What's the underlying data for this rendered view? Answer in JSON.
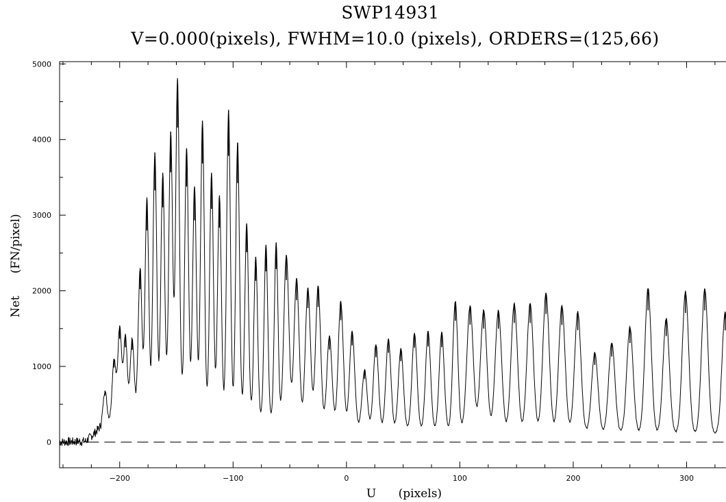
{
  "chart_data": {
    "type": "line",
    "title": "SWP14931",
    "subtitle": "V=0.000(pixels), FWHM=10.0 (pixels), ORDERS=(125,66)",
    "xlabel": "U      (pixels)",
    "ylabel": "Net      (FN/pixel)",
    "xlim": [
      -253,
      345
    ],
    "ylim": [
      -340,
      5030
    ],
    "x_ticks": [
      -200,
      -100,
      0,
      100,
      200,
      300
    ],
    "y_ticks": [
      0,
      1000,
      2000,
      3000,
      4000,
      5000
    ],
    "grid": false,
    "legend": "none",
    "zero_line": {
      "y": 0,
      "style": "dashed"
    },
    "series": [
      {
        "peaks": [
          {
            "x": -213,
            "y": 680
          },
          {
            "x": -205,
            "y": 1100
          },
          {
            "x": -200,
            "y": 1540
          },
          {
            "x": -195,
            "y": 1400
          },
          {
            "x": -189,
            "y": 1360
          },
          {
            "x": -182,
            "y": 2300
          },
          {
            "x": -176,
            "y": 3210
          },
          {
            "x": -169,
            "y": 3830
          },
          {
            "x": -162,
            "y": 3560
          },
          {
            "x": -155,
            "y": 4100
          },
          {
            "x": -149,
            "y": 4790
          },
          {
            "x": -141,
            "y": 3880
          },
          {
            "x": -134,
            "y": 3360
          },
          {
            "x": -127,
            "y": 4250
          },
          {
            "x": -119,
            "y": 3550
          },
          {
            "x": -112,
            "y": 3260
          },
          {
            "x": -104,
            "y": 4380
          },
          {
            "x": -96,
            "y": 3960
          },
          {
            "x": -88,
            "y": 2890
          },
          {
            "x": -80,
            "y": 2450
          },
          {
            "x": -71,
            "y": 2600
          },
          {
            "x": -62,
            "y": 2640
          },
          {
            "x": -53,
            "y": 2470
          },
          {
            "x": -44,
            "y": 2160
          },
          {
            "x": -34,
            "y": 2040
          },
          {
            "x": -25,
            "y": 2060
          },
          {
            "x": -15,
            "y": 1400
          },
          {
            "x": -5,
            "y": 1860
          },
          {
            "x": 5,
            "y": 1470
          },
          {
            "x": 16,
            "y": 950
          },
          {
            "x": 26,
            "y": 1290
          },
          {
            "x": 37,
            "y": 1360
          },
          {
            "x": 48,
            "y": 1230
          },
          {
            "x": 60,
            "y": 1440
          },
          {
            "x": 72,
            "y": 1460
          },
          {
            "x": 84,
            "y": 1450
          },
          {
            "x": 96,
            "y": 1860
          },
          {
            "x": 109,
            "y": 1800
          },
          {
            "x": 121,
            "y": 1740
          },
          {
            "x": 134,
            "y": 1740
          },
          {
            "x": 148,
            "y": 1830
          },
          {
            "x": 162,
            "y": 1830
          },
          {
            "x": 176,
            "y": 1970
          },
          {
            "x": 190,
            "y": 1800
          },
          {
            "x": 204,
            "y": 1720
          },
          {
            "x": 219,
            "y": 1180
          },
          {
            "x": 234,
            "y": 1310
          },
          {
            "x": 250,
            "y": 1520
          },
          {
            "x": 266,
            "y": 2030
          },
          {
            "x": 282,
            "y": 1630
          },
          {
            "x": 299,
            "y": 1990
          },
          {
            "x": 316,
            "y": 2030
          },
          {
            "x": 334,
            "y": 1720
          }
        ],
        "baseline": [
          {
            "x": -253,
            "y": 0
          },
          {
            "x": -230,
            "y": 10
          },
          {
            "x": -222,
            "y": 120
          },
          {
            "x": -215,
            "y": 230
          },
          {
            "x": -205,
            "y": 330
          },
          {
            "x": -195,
            "y": 420
          },
          {
            "x": -180,
            "y": 450
          },
          {
            "x": -160,
            "y": 520
          },
          {
            "x": -150,
            "y": 580
          },
          {
            "x": -140,
            "y": 530
          },
          {
            "x": -120,
            "y": 440
          },
          {
            "x": -100,
            "y": 400
          },
          {
            "x": -80,
            "y": 330
          },
          {
            "x": -60,
            "y": 290
          },
          {
            "x": -40,
            "y": 260
          },
          {
            "x": -20,
            "y": 220
          },
          {
            "x": 0,
            "y": 190
          },
          {
            "x": 20,
            "y": 170
          },
          {
            "x": 50,
            "y": 160
          },
          {
            "x": 100,
            "y": 150
          },
          {
            "x": 150,
            "y": 130
          },
          {
            "x": 200,
            "y": 115
          },
          {
            "x": 250,
            "y": 110
          },
          {
            "x": 300,
            "y": 105
          },
          {
            "x": 345,
            "y": 100
          }
        ]
      }
    ]
  }
}
